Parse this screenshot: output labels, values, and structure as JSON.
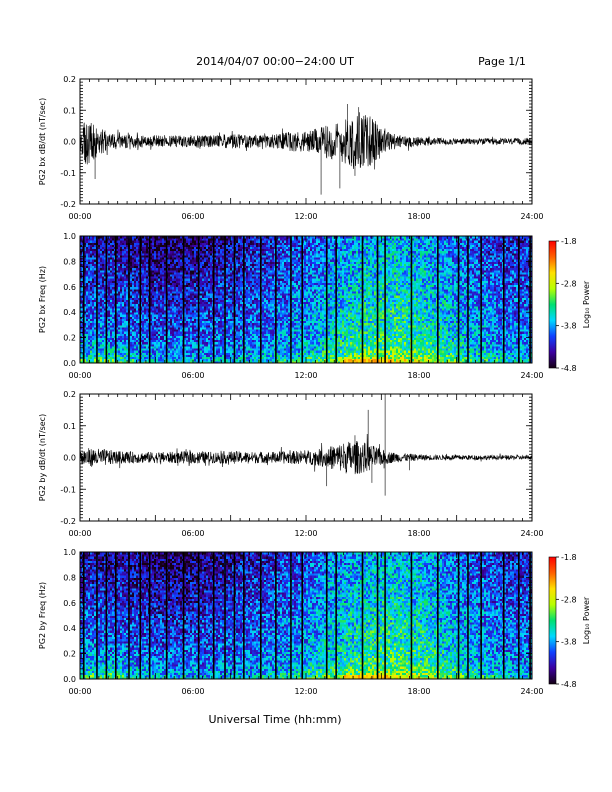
{
  "header": {
    "title": "2014/04/07  00:00−24:00 UT",
    "page": "Page 1/1"
  },
  "footer": {
    "xlabel": "Universal Time (hh:mm)"
  },
  "colorscale": {
    "label": "Log₁₀ Power",
    "ticks": [
      "-1.8",
      "-2.8",
      "-3.8",
      "-4.8"
    ],
    "range": [
      -4.8,
      -1.8
    ],
    "stops": [
      "#140014",
      "#3c00a0",
      "#1040ff",
      "#00d8ff",
      "#00e070",
      "#b8ff00",
      "#ffe000",
      "#ff6000",
      "#ff0000"
    ]
  },
  "chart_data": [
    {
      "type": "line",
      "ylabel": "PG2 bx dB/dt (nT/sec)",
      "ylim": [
        -0.2,
        0.2
      ],
      "yticks": [
        "0.2",
        "0.1",
        "0.0",
        "-0.1",
        "-0.2"
      ],
      "ytick_values": [
        0.2,
        0.1,
        0.0,
        -0.1,
        -0.2
      ],
      "xticks": [
        "00:00",
        "06:00",
        "12:00",
        "18:00",
        "24:00"
      ],
      "xlim_hours": [
        0,
        24
      ],
      "series": [
        {
          "x_hours": [
            0,
            0.3,
            0.5,
            0.8,
            1,
            1.5,
            2,
            3,
            4,
            5,
            6,
            7,
            8,
            9,
            10,
            11,
            12,
            12.5,
            13,
            13.5,
            14,
            14.5,
            15,
            15.5,
            16,
            16.5,
            17,
            18,
            19,
            20,
            21,
            22,
            23,
            24
          ],
          "amplitude": [
            0.05,
            0.08,
            0.07,
            0.06,
            0.045,
            0.03,
            0.025,
            0.02,
            0.02,
            0.02,
            0.02,
            0.02,
            0.025,
            0.02,
            0.02,
            0.03,
            0.035,
            0.04,
            0.05,
            0.06,
            0.07,
            0.09,
            0.09,
            0.08,
            0.05,
            0.03,
            0.02,
            0.015,
            0.012,
            0.01,
            0.01,
            0.01,
            0.01,
            0.01
          ],
          "extremes": [
            {
              "x": 0.8,
              "y": -0.12
            },
            {
              "x": 12.8,
              "y": -0.17
            },
            {
              "x": 13.8,
              "y": -0.15
            },
            {
              "x": 14.6,
              "y": -0.11
            },
            {
              "x": 14.2,
              "y": 0.12
            },
            {
              "x": 14.8,
              "y": 0.11
            },
            {
              "x": 15.4,
              "y": 0.08
            }
          ]
        }
      ]
    },
    {
      "type": "heatmap",
      "ylabel": "PG2 bx Freq (Hz)",
      "ylim": [
        0.0,
        1.0
      ],
      "yticks": [
        "1.0",
        "0.8",
        "0.6",
        "0.4",
        "0.2",
        "0.0"
      ],
      "ytick_values": [
        1.0,
        0.8,
        0.6,
        0.4,
        0.2,
        0.0
      ],
      "xticks": [
        "00:00",
        "06:00",
        "12:00",
        "18:00",
        "24:00"
      ],
      "xlim_hours": [
        0,
        24
      ],
      "zlim": [
        -4.8,
        -1.8
      ],
      "gap_lines_hours": [
        0.2,
        0.9,
        1.4,
        1.9,
        2.6,
        3.2,
        3.7,
        4.6,
        5.5,
        6.3,
        7.1,
        7.7,
        8.2,
        8.7,
        9.6,
        10.4,
        11.2,
        11.8,
        13.1,
        13.6,
        15.0,
        15.8,
        16.2,
        17.6,
        19.0,
        20.1,
        20.6,
        21.3,
        22.5,
        23.3,
        23.9
      ]
    },
    {
      "type": "line",
      "ylabel": "PG2 by dB/dt (nT/sec)",
      "ylim": [
        -0.2,
        0.2
      ],
      "yticks": [
        "0.2",
        "0.1",
        "0.0",
        "-0.1",
        "-0.2"
      ],
      "ytick_values": [
        0.2,
        0.1,
        0.0,
        -0.1,
        -0.2
      ],
      "xticks": [
        "00:00",
        "06:00",
        "12:00",
        "18:00",
        "24:00"
      ],
      "xlim_hours": [
        0,
        24
      ],
      "series": [
        {
          "x_hours": [
            0,
            0.5,
            1,
            1.5,
            2,
            3,
            4,
            5,
            6,
            7,
            8,
            9,
            10,
            11,
            12,
            12.5,
            13,
            13.5,
            14,
            14.5,
            15,
            15.5,
            16,
            16.5,
            17,
            18,
            19,
            20,
            21,
            22,
            23,
            24
          ],
          "amplitude": [
            0.03,
            0.03,
            0.028,
            0.025,
            0.02,
            0.018,
            0.018,
            0.018,
            0.02,
            0.018,
            0.02,
            0.018,
            0.018,
            0.02,
            0.022,
            0.025,
            0.03,
            0.04,
            0.05,
            0.055,
            0.05,
            0.04,
            0.025,
            0.018,
            0.014,
            0.01,
            0.008,
            0.008,
            0.008,
            0.007,
            0.007,
            0.007
          ],
          "extremes": [
            {
              "x": 13.1,
              "y": -0.09
            },
            {
              "x": 15.3,
              "y": 0.15
            },
            {
              "x": 15.5,
              "y": -0.08
            },
            {
              "x": 16.2,
              "y": 0.2
            },
            {
              "x": 16.2,
              "y": -0.12
            },
            {
              "x": 14.6,
              "y": 0.07
            },
            {
              "x": 17.5,
              "y": -0.04
            }
          ]
        }
      ]
    },
    {
      "type": "heatmap",
      "ylabel": "PG2 by Freq (Hz)",
      "ylim": [
        0.0,
        1.0
      ],
      "yticks": [
        "1.0",
        "0.8",
        "0.6",
        "0.4",
        "0.2",
        "0.0"
      ],
      "ytick_values": [
        1.0,
        0.8,
        0.6,
        0.4,
        0.2,
        0.0
      ],
      "xticks": [
        "00:00",
        "06:00",
        "12:00",
        "18:00",
        "24:00"
      ],
      "xlim_hours": [
        0,
        24
      ],
      "zlim": [
        -4.8,
        -1.8
      ],
      "gap_lines_hours": [
        0.2,
        0.9,
        1.4,
        1.9,
        2.6,
        3.2,
        3.7,
        4.6,
        5.5,
        6.3,
        7.1,
        7.7,
        8.2,
        8.7,
        9.6,
        10.4,
        11.2,
        11.8,
        13.1,
        13.6,
        15.0,
        15.8,
        16.2,
        17.6,
        19.0,
        20.1,
        20.6,
        21.3,
        22.5,
        23.3,
        23.9
      ]
    }
  ]
}
